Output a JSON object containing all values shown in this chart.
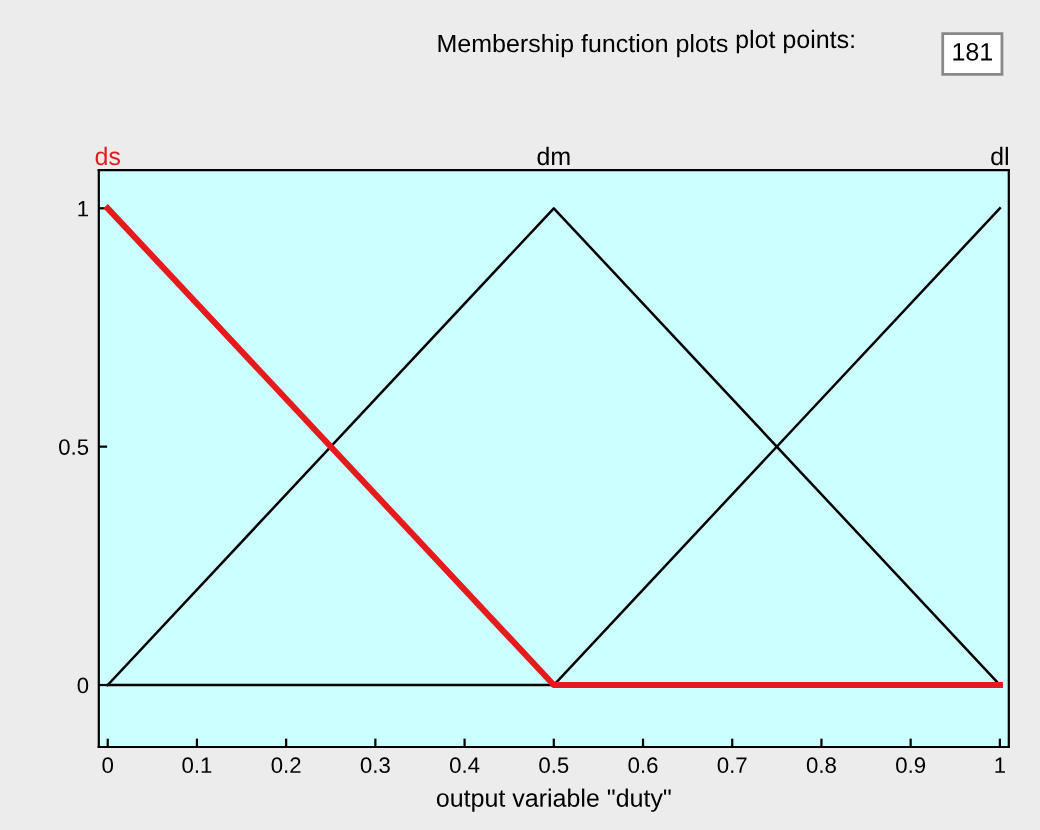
{
  "chart_data": {
    "type": "line",
    "title": "Membership function plots",
    "xlabel": "output variable \"duty\"",
    "x": [
      0,
      0.5,
      1
    ],
    "series": [
      {
        "name": "ds",
        "color": "#e41a1c",
        "values": [
          1,
          0,
          0
        ]
      },
      {
        "name": "dm",
        "color": "#000000",
        "values": [
          0,
          1,
          0
        ]
      },
      {
        "name": "dl",
        "color": "#000000",
        "values": [
          0,
          0,
          1
        ]
      }
    ],
    "annotations": [
      "plot points:",
      "181"
    ],
    "xlim": [
      -0.01,
      1.01
    ],
    "ylim": [
      -0.13,
      1.08
    ],
    "xticks": [
      0,
      0.1,
      0.2,
      0.3,
      0.4,
      0.5,
      0.6,
      0.7,
      0.8,
      0.9,
      1
    ],
    "yticks": [
      0,
      0.5,
      1
    ],
    "grid": false,
    "legend": false
  }
}
